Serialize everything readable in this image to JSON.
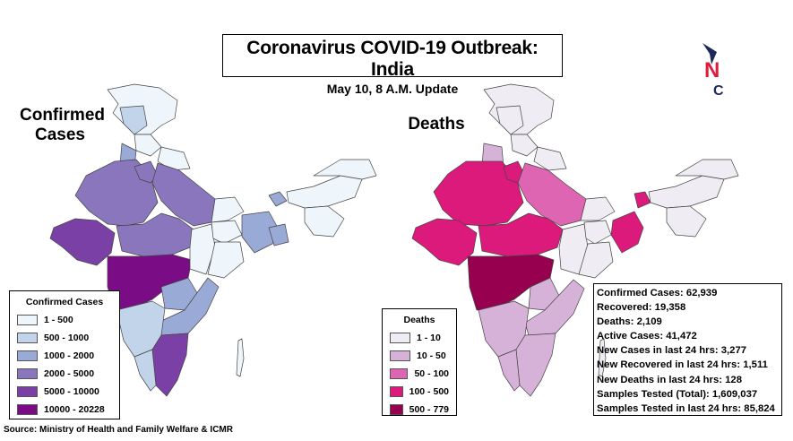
{
  "title": {
    "main": "Coronavirus COVID-19 Outbreak: India",
    "sub": "May 10, 8 A.M. Update"
  },
  "maps": {
    "confirmed_label": "Confirmed\nCases",
    "deaths_label": "Deaths"
  },
  "confirmed_legend": {
    "title": "Confirmed Cases",
    "items": [
      {
        "label": "1 - 500",
        "color": "#eef6fb"
      },
      {
        "label": "500 - 1000",
        "color": "#c2d4ea"
      },
      {
        "label": "1000 - 2000",
        "color": "#99aad6"
      },
      {
        "label": "2000 - 5000",
        "color": "#8a76bc"
      },
      {
        "label": "5000 - 10000",
        "color": "#7a40a6"
      },
      {
        "label": "10000 - 20228",
        "color": "#7a0d86"
      }
    ]
  },
  "deaths_legend": {
    "title": "Deaths",
    "items": [
      {
        "label": "1 - 10",
        "color": "#efecf4"
      },
      {
        "label": "10 - 50",
        "color": "#d6b2d8"
      },
      {
        "label": "50 - 100",
        "color": "#de65b1"
      },
      {
        "label": "100 - 500",
        "color": "#dc1a7c"
      },
      {
        "label": "500 - 779",
        "color": "#97004e"
      }
    ]
  },
  "stats": [
    "Confirmed Cases: 62,939",
    "Recovered: 19,358",
    "Deaths: 2,109",
    "Active Cases:  41,472",
    "New Cases in last 24 hrs: 3,277",
    "New Recovered in last 24 hrs: 1,511",
    "New Deaths in last 24 hrs: 128",
    "Samples Tested (Total): 1,609,037",
    "Samples Tested in last 24 hrs: 85,824"
  ],
  "source": "Source: Ministry of Health and Family Welfare & ICMR",
  "logo": {
    "letters": [
      "N",
      "C"
    ],
    "colors": {
      "arrow": "#1c2a5a",
      "n": "#d81e3a",
      "c": "#1c2a5a"
    }
  }
}
